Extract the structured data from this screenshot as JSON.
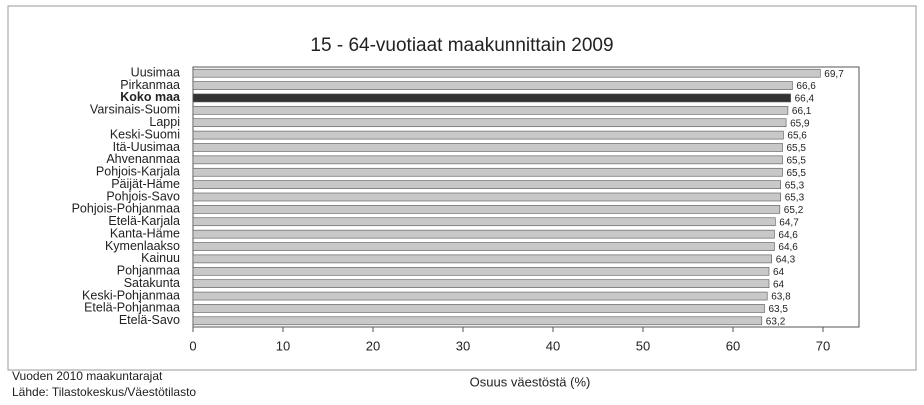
{
  "chart_data": {
    "type": "hbar",
    "title": "15 - 64-vuotiaat maakunnittain 2009",
    "categories": [
      "Uusimaa",
      "Pirkanmaa",
      "Koko maa",
      "Varsinais-Suomi",
      "Lappi",
      "Keski-Suomi",
      "Itä-Uusimaa",
      "Ahvenanmaa",
      "Pohjois-Karjala",
      "Päijät-Häme",
      "Pohjois-Savo",
      "Pohjois-Pohjanmaa",
      "Etelä-Karjala",
      "Kanta-Häme",
      "Kymenlaakso",
      "Kainuu",
      "Pohjanmaa",
      "Satakunta",
      "Keski-Pohjanmaa",
      "Etelä-Pohjanmaa",
      "Etelä-Savo"
    ],
    "values": [
      69.7,
      66.6,
      66.4,
      66.1,
      65.9,
      65.6,
      65.5,
      65.5,
      65.5,
      65.3,
      65.3,
      65.2,
      64.7,
      64.6,
      64.6,
      64.3,
      64,
      64,
      63.8,
      63.5,
      63.2
    ],
    "value_labels": [
      "69,7",
      "66,6",
      "66,4",
      "66,1",
      "65,9",
      "65,6",
      "65,5",
      "65,5",
      "65,5",
      "65,3",
      "65,3",
      "65,2",
      "64,7",
      "64,6",
      "64,6",
      "64,3",
      "64",
      "64",
      "63,8",
      "63,5",
      "63,2"
    ],
    "colors": [
      "#c8c8c8",
      "#c8c8c8",
      "#333333",
      "#c8c8c8",
      "#c8c8c8",
      "#c8c8c8",
      "#c8c8c8",
      "#c8c8c8",
      "#c8c8c8",
      "#c8c8c8",
      "#c8c8c8",
      "#c8c8c8",
      "#c8c8c8",
      "#c8c8c8",
      "#c8c8c8",
      "#c8c8c8",
      "#c8c8c8",
      "#c8c8c8",
      "#c8c8c8",
      "#c8c8c8",
      "#c8c8c8"
    ],
    "xlim": [
      0,
      74
    ],
    "xticks": [
      0,
      10,
      20,
      30,
      40,
      50,
      60,
      70
    ],
    "xlabel": "Osuus väestöstä (%)",
    "notes": [
      "Vuoden 2010 maakuntarajat",
      "Lähde: Tilastokeskus/Väestötilasto"
    ]
  }
}
